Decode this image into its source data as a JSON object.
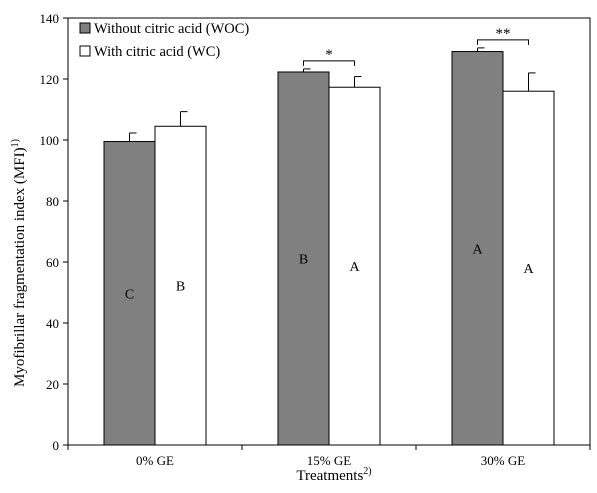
{
  "chart_data": {
    "type": "bar",
    "categories": [
      "0% GE",
      "15% GE",
      "30% GE"
    ],
    "series": [
      {
        "name": "Without citric acid (WOC)",
        "color": "#808080",
        "values": [
          99.5,
          122.3,
          129.0
        ],
        "errors": [
          2.8,
          1.0,
          1.2
        ],
        "letters": [
          "C",
          "B",
          "A"
        ]
      },
      {
        "name": "With citric acid (WC)",
        "color": "#ffffff",
        "values": [
          104.5,
          117.3,
          116.0
        ],
        "errors": [
          4.8,
          3.5,
          6.0
        ],
        "letters": [
          "B",
          "A",
          "A"
        ]
      }
    ],
    "significance": [
      {
        "category": "15% GE",
        "label": "*"
      },
      {
        "category": "30% GE",
        "label": "**"
      }
    ],
    "ylabel": "Myofibrillar fragmentation index (MFI)",
    "ylabel_sup": "1)",
    "xlabel": "Treatments",
    "xlabel_sup": "2)",
    "ylim": [
      0,
      140
    ],
    "yticks": [
      0,
      20,
      40,
      60,
      80,
      100,
      120,
      140
    ],
    "grid": false,
    "legend_position": "top-left"
  }
}
